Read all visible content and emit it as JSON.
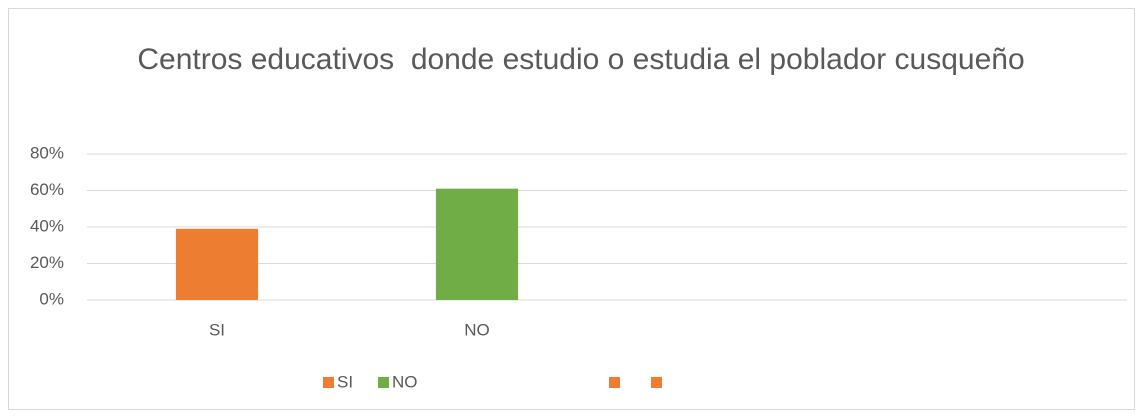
{
  "chart_data": {
    "type": "bar",
    "title": "Centros educativos  donde estudio o estudia el poblador cusqueño",
    "categories": [
      "SI",
      "NO",
      null,
      null
    ],
    "values": [
      39,
      61,
      null,
      null
    ],
    "colors": [
      "#ed7d31",
      "#70ad47",
      "#ed7d31",
      "#ed7d31"
    ],
    "ylim": [
      0,
      80
    ],
    "yticks": [
      {
        "value": 0,
        "label": "0%"
      },
      {
        "value": 20,
        "label": "20%"
      },
      {
        "value": 40,
        "label": "40%"
      },
      {
        "value": 60,
        "label": "60%"
      },
      {
        "value": 80,
        "label": "80%"
      }
    ],
    "grid": true,
    "legend": "bottom"
  }
}
